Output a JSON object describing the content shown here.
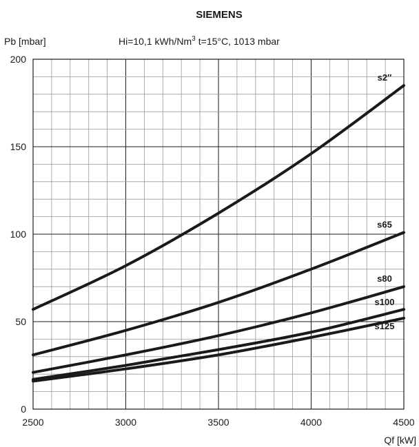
{
  "chart_data": {
    "type": "line",
    "title": "SIEMENS",
    "subtitle_hi": "Hi=10,1 kWh/Nm",
    "subtitle_sup": "3",
    "subtitle_conditions": "t=15°C, 1013 mbar",
    "ylabel": "Pb [mbar]",
    "xlabel": "Qf [kW]",
    "xlim": [
      2500,
      4500
    ],
    "ylim": [
      0,
      200
    ],
    "x_ticks": [
      2500,
      3000,
      3500,
      4000,
      4500
    ],
    "y_ticks": [
      0,
      50,
      100,
      150,
      200
    ],
    "x_minor_step": 100,
    "y_minor_step": 10,
    "grid": true,
    "series": [
      {
        "name": "s2″",
        "x": [
          2500,
          3000,
          3500,
          4000,
          4500
        ],
        "values": [
          57,
          82,
          112,
          146,
          185
        ]
      },
      {
        "name": "s65",
        "x": [
          2500,
          3000,
          3500,
          4000,
          4500
        ],
        "values": [
          31,
          45,
          61,
          80,
          101
        ]
      },
      {
        "name": "s80",
        "x": [
          2500,
          3000,
          3500,
          4000,
          4500
        ],
        "values": [
          21,
          31,
          42,
          55,
          70
        ]
      },
      {
        "name": "s100",
        "x": [
          2500,
          3000,
          3500,
          4000,
          4500
        ],
        "values": [
          17,
          25,
          34,
          44,
          57
        ]
      },
      {
        "name": "s125",
        "x": [
          2500,
          3000,
          3500,
          4000,
          4500
        ],
        "values": [
          16,
          23,
          31,
          41,
          52
        ]
      }
    ]
  }
}
